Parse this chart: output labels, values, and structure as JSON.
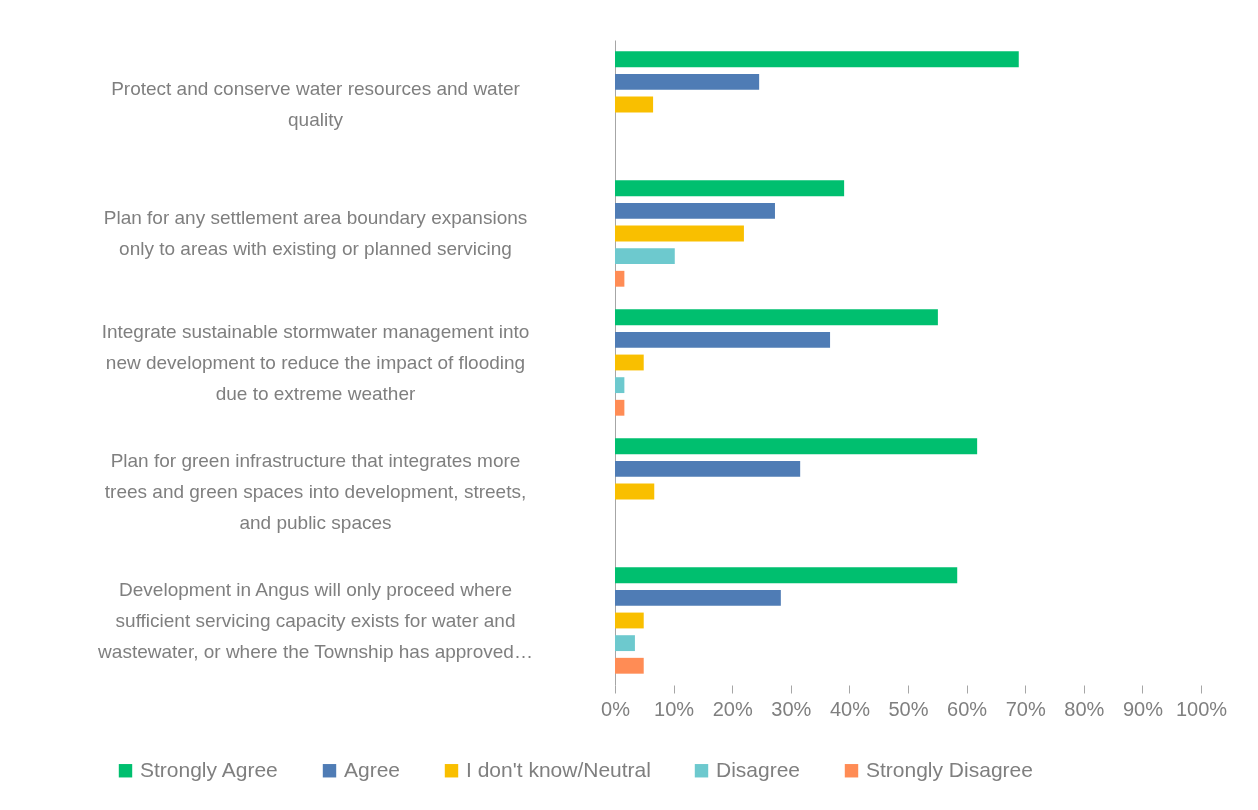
{
  "chart_data": {
    "type": "bar",
    "orientation": "horizontal",
    "categories": [
      "Protect and conserve water resources and water quality",
      "Plan for any settlement area boundary expansions only to areas with existing or planned servicing",
      "Integrate sustainable stormwater management into new development to reduce the impact of flooding due to extreme weather",
      "Plan for green infrastructure that integrates more trees and green spaces into development, streets, and public spaces",
      "Development in Angus will only proceed where sufficient servicing capacity exists for water and wastewater, or where the Township has approved…"
    ],
    "series": [
      {
        "name": "Strongly Agree",
        "color": "#00bf6f",
        "values": [
          68.9,
          39.1,
          55.1,
          61.8,
          58.4
        ]
      },
      {
        "name": "Agree",
        "color": "#4f7cb5",
        "values": [
          24.6,
          27.3,
          36.7,
          31.6,
          28.3
        ]
      },
      {
        "name": "I don't know/Neutral",
        "color": "#f9bf00",
        "values": [
          6.5,
          22.0,
          4.9,
          6.7,
          4.9
        ]
      },
      {
        "name": "Disagree",
        "color": "#6dc9ce",
        "values": [
          0,
          10.2,
          1.6,
          0,
          3.4
        ]
      },
      {
        "name": "Strongly Disagree",
        "color": "#ff8c55",
        "values": [
          0,
          1.6,
          1.6,
          0,
          4.9
        ]
      }
    ],
    "xlim": [
      0,
      100
    ],
    "xticks": [
      {
        "value": 0,
        "label": "0%"
      },
      {
        "value": 10,
        "label": "10%"
      },
      {
        "value": 20,
        "label": "20%"
      },
      {
        "value": 30,
        "label": "30%"
      },
      {
        "value": 40,
        "label": "40%"
      },
      {
        "value": 50,
        "label": "50%"
      },
      {
        "value": 60,
        "label": "60%"
      },
      {
        "value": 70,
        "label": "70%"
      },
      {
        "value": 80,
        "label": "80%"
      },
      {
        "value": 90,
        "label": "90%"
      },
      {
        "value": 100,
        "label": "100%"
      }
    ],
    "grid": false,
    "legend": "bottom"
  }
}
